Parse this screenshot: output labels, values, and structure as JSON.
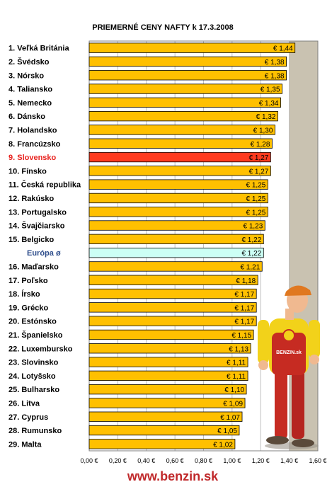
{
  "chart_data": {
    "type": "bar",
    "orientation": "horizontal",
    "title": "PRIEMERNÉ CENY NAFTY k 17.3.2008",
    "categories": [
      "1. Veľká Británia",
      "2. Švédsko",
      "3. Nórsko",
      "4. Taliansko",
      "5. Nemecko",
      "6. Dánsko",
      "7. Holandsko",
      "8. Francúzsko",
      "9. Slovensko",
      "10. Fínsko",
      "11. Česká republika",
      "12. Rakúsko",
      "13. Portugalsko",
      "14. Švajčiarsko",
      "15. Belgicko",
      "Európa ø",
      "16. Maďarsko",
      "17. Poľsko",
      "18. Írsko",
      "19. Grécko",
      "20. Estónsko",
      "21. Španielsko",
      "22. Luxembursko",
      "23. Slovinsko",
      "24. Lotyšsko",
      "25. Bulharsko",
      "26. Litva",
      "27. Cyprus",
      "28. Rumunsko",
      "29. Malta"
    ],
    "values": [
      1.44,
      1.38,
      1.38,
      1.35,
      1.34,
      1.32,
      1.3,
      1.28,
      1.27,
      1.27,
      1.25,
      1.25,
      1.25,
      1.23,
      1.22,
      1.22,
      1.21,
      1.18,
      1.17,
      1.17,
      1.17,
      1.15,
      1.13,
      1.11,
      1.11,
      1.1,
      1.09,
      1.07,
      1.05,
      1.02
    ],
    "data_labels": [
      "€ 1,44",
      "€ 1,38",
      "€ 1,38",
      "€ 1,35",
      "€ 1,34",
      "€ 1,32",
      "€ 1,30",
      "€ 1,28",
      "€ 1,27",
      "€ 1,27",
      "€ 1,25",
      "€ 1,25",
      "€ 1,25",
      "€ 1,23",
      "€ 1,22",
      "€ 1,22",
      "€ 1,21",
      "€ 1,18",
      "€ 1,17",
      "€ 1,17",
      "€ 1,17",
      "€ 1,15",
      "€ 1,13",
      "€ 1,11",
      "€ 1,11",
      "€ 1,10",
      "€ 1,09",
      "€ 1,07",
      "€ 1,05",
      "€ 1,02"
    ],
    "highlight": {
      "category": "9. Slovensko",
      "color": "#ff3b1f",
      "label_color": "#e8231f"
    },
    "average": {
      "category": "Európa ø",
      "color": "#ccfff5",
      "label_color": "#2f4e8c"
    },
    "bar_color": "#ffc000",
    "shaded_band": {
      "from": 1.4,
      "to": 1.6,
      "color": "#c9c2b1"
    },
    "xlim": [
      0,
      1.6
    ],
    "xticks": [
      0,
      0.2,
      0.4,
      0.6,
      0.8,
      1.0,
      1.2,
      1.4,
      1.6
    ],
    "xtick_labels": [
      "0,00 €",
      "0,20 €",
      "0,40 €",
      "0,60 €",
      "0,80 €",
      "1,00 €",
      "1,20 €",
      "1,40 €",
      "1,60 €"
    ],
    "grid": "vertical",
    "legend": "none"
  },
  "footer": {
    "website": "www.benzin.sk"
  },
  "mascot": {
    "shirt_text": "BENZIN.sk"
  }
}
